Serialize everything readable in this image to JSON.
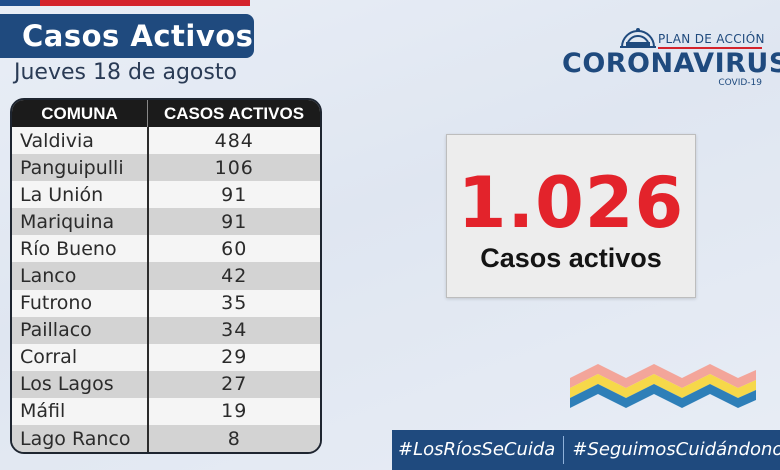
{
  "header": {
    "title": "Casos Activos",
    "date": "Jueves 18 de agosto"
  },
  "logo": {
    "plan": "PLAN DE ACCIÓN",
    "name": "CORONAVIRUS",
    "sub": "COVID-19"
  },
  "table": {
    "headers": [
      "COMUNA",
      "CASOS ACTIVOS"
    ],
    "rows": [
      {
        "comuna": "Valdivia",
        "casos": "484"
      },
      {
        "comuna": "Panguipulli",
        "casos": "106"
      },
      {
        "comuna": "La Unión",
        "casos": "91"
      },
      {
        "comuna": "Mariquina",
        "casos": "91"
      },
      {
        "comuna": "Río Bueno",
        "casos": "60"
      },
      {
        "comuna": "Lanco",
        "casos": "42"
      },
      {
        "comuna": "Futrono",
        "casos": "35"
      },
      {
        "comuna": "Paillaco",
        "casos": "34"
      },
      {
        "comuna": "Corral",
        "casos": "29"
      },
      {
        "comuna": "Los Lagos",
        "casos": "27"
      },
      {
        "comuna": "Máfil",
        "casos": "19"
      },
      {
        "comuna": "Lago Ranco",
        "casos": "8"
      }
    ]
  },
  "total": {
    "value": "1.026",
    "label": "Casos activos"
  },
  "footer": {
    "hashtag1": "#LosRíosSeCuida",
    "hashtag2": "#SeguimosCuidándonos"
  },
  "colors": {
    "brand_blue": "#1f4a7e",
    "accent_red": "#e3232b"
  },
  "icons": [
    "dome-icon",
    "wave-decoration"
  ]
}
